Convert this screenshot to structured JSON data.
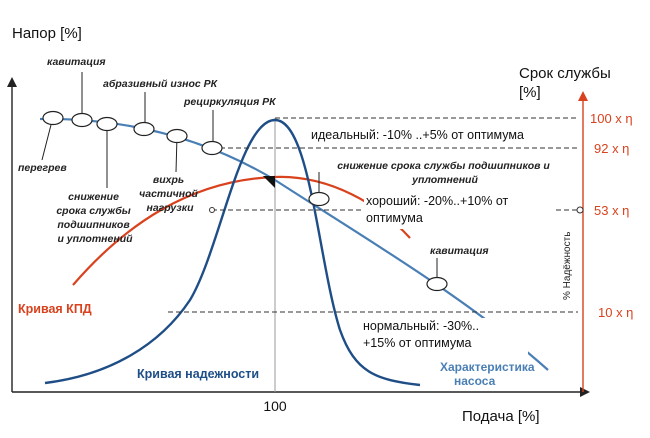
{
  "chart_data": {
    "type": "line",
    "title": "",
    "xlabel": "Подача [%]",
    "ylabel": "Напор [%]",
    "y2label": [
      "Срок службы",
      "[%]"
    ],
    "y2label_side": "% Надёжность",
    "x_tick": "100",
    "xlim": [
      0,
      200
    ],
    "ylim": [
      0,
      100
    ],
    "grid": false,
    "series": [
      {
        "name": "Характеристика насоса",
        "color": "#4a7fb5",
        "x": [
          0,
          25,
          50,
          75,
          100,
          125,
          150,
          175,
          200
        ],
        "y": [
          98,
          97,
          93.5,
          87,
          77,
          65,
          52,
          37,
          20
        ]
      },
      {
        "name": "Кривая КПД",
        "color": "#d9421e",
        "x": [
          0,
          25,
          50,
          75,
          90,
          100,
          115,
          130,
          150
        ],
        "y": [
          37,
          53,
          63,
          69,
          71,
          71,
          69,
          64,
          52
        ]
      },
      {
        "name": "Кривая надежности",
        "color": "#1f4e87",
        "x": [
          20,
          50,
          70,
          82,
          90,
          97,
          103,
          110,
          118,
          130,
          150,
          175
        ],
        "y": [
          1,
          6,
          25,
          60,
          82,
          92,
          92,
          82,
          60,
          25,
          6,
          1
        ]
      }
    ],
    "reliability_levels": [
      {
        "value": "100 x η",
        "label": "",
        "y": 92
      },
      {
        "value": "92 x η",
        "label": "идеальный:  -10% ..+5% от оптимума",
        "y": 85
      },
      {
        "value": "53 x η",
        "label": "хороший:  -20%..+10% от оптимума",
        "y": 59
      },
      {
        "value": "10 x η",
        "label": "нормальный:  -30%.. +15% от оптимума",
        "y": 24
      }
    ],
    "annotations": {
      "cavitation_top": "кавитация",
      "abrasive": "абразивный износ РК",
      "recirculation": "рециркуляция РК",
      "overheat": "перегрев",
      "bearing_wear_left": [
        "снижение",
        "срока службы",
        "подшипников",
        "и уплотнений"
      ],
      "partial_load": [
        "вихрь",
        "частичной",
        "нагрузки"
      ],
      "bearing_wear_right": [
        "снижение срока службы подшипников и",
        "уплотнений"
      ],
      "cavitation_right": "кавитация",
      "efficiency_curve_label": "Кривая КПД",
      "reliability_curve_label": "Кривая надежности",
      "pump_curve_label": [
        "Характеристика",
        "насоса"
      ]
    }
  }
}
